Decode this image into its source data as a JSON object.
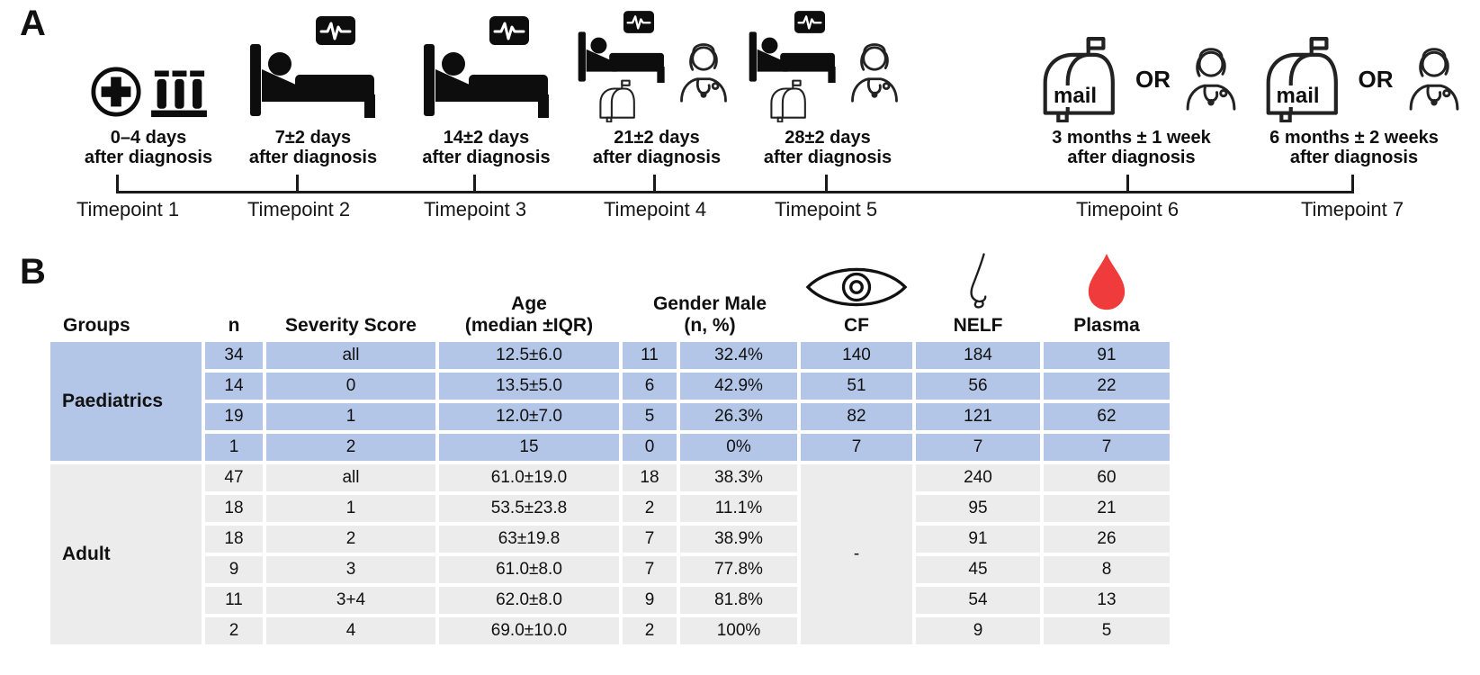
{
  "panel_a": {
    "label": "A",
    "timepoints": [
      {
        "label": "Timepoint 1",
        "caption": [
          "0–4 days",
          "after diagnosis"
        ],
        "icons": [
          "medical-cross-icon",
          "test-tubes-icon"
        ]
      },
      {
        "label": "Timepoint 2",
        "caption": [
          "7±2 days",
          "after diagnosis"
        ],
        "icons": [
          "heart-monitor-icon",
          "hospital-bed-icon"
        ]
      },
      {
        "label": "Timepoint 3",
        "caption": [
          "14±2 days",
          "after diagnosis"
        ],
        "icons": [
          "heart-monitor-icon",
          "hospital-bed-icon"
        ]
      },
      {
        "label": "Timepoint 4",
        "caption": [
          "21±2 days",
          "after diagnosis"
        ],
        "icons": [
          "heart-monitor-icon",
          "hospital-bed-icon",
          "mailbox-icon",
          "clinician-icon"
        ]
      },
      {
        "label": "Timepoint 5",
        "caption": [
          "28±2 days",
          "after diagnosis"
        ],
        "icons": [
          "heart-monitor-icon",
          "hospital-bed-icon",
          "mailbox-icon",
          "clinician-icon"
        ]
      },
      {
        "label": "Timepoint 6",
        "caption": [
          "3 months ± 1 week",
          "after diagnosis"
        ],
        "icons": [
          "mailbox-icon",
          "clinician-icon"
        ],
        "mail_label": "mail",
        "or_label": "OR"
      },
      {
        "label": "Timepoint 7",
        "caption": [
          "6 months ± 2 weeks",
          "after diagnosis"
        ],
        "icons": [
          "mailbox-icon",
          "clinician-icon"
        ],
        "mail_label": "mail",
        "or_label": "OR"
      }
    ]
  },
  "panel_b": {
    "label": "B",
    "headers": {
      "groups": "Groups",
      "n": "n",
      "severity": "Severity Score",
      "age_line1": "Age",
      "age_line2": "(median ±IQR)",
      "gender_line1": "Gender Male",
      "gender_line2": "(n, %)",
      "cf": "CF",
      "nelf": "NELF",
      "plasma": "Plasma",
      "cf_icon": "eye-icon",
      "nelf_icon": "nose-icon",
      "plasma_icon": "blood-drop-icon"
    },
    "groups": [
      {
        "name": "Paediatrics",
        "row_color": "#b4c6e7",
        "rows": [
          {
            "n": "34",
            "severity": "all",
            "age": "12.5±6.0",
            "gender_n": "11",
            "gender_pct": "32.4%",
            "cf": "140",
            "nelf": "184",
            "plasma": "91"
          },
          {
            "n": "14",
            "severity": "0",
            "age": "13.5±5.0",
            "gender_n": "6",
            "gender_pct": "42.9%",
            "cf": "51",
            "nelf": "56",
            "plasma": "22"
          },
          {
            "n": "19",
            "severity": "1",
            "age": "12.0±7.0",
            "gender_n": "5",
            "gender_pct": "26.3%",
            "cf": "82",
            "nelf": "121",
            "plasma": "62"
          },
          {
            "n": "1",
            "severity": "2",
            "age": "15",
            "gender_n": "0",
            "gender_pct": "0%",
            "cf": "7",
            "nelf": "7",
            "plasma": "7"
          }
        ]
      },
      {
        "name": "Adult",
        "row_color": "#ececec",
        "cf_merged": "-",
        "rows": [
          {
            "n": "47",
            "severity": "all",
            "age": "61.0±19.0",
            "gender_n": "18",
            "gender_pct": "38.3%",
            "nelf": "240",
            "plasma": "60"
          },
          {
            "n": "18",
            "severity": "1",
            "age": "53.5±23.8",
            "gender_n": "2",
            "gender_pct": "11.1%",
            "nelf": "95",
            "plasma": "21"
          },
          {
            "n": "18",
            "severity": "2",
            "age": "63±19.8",
            "gender_n": "7",
            "gender_pct": "38.9%",
            "nelf": "91",
            "plasma": "26"
          },
          {
            "n": "9",
            "severity": "3",
            "age": "61.0±8.0",
            "gender_n": "7",
            "gender_pct": "77.8%",
            "nelf": "45",
            "plasma": "8"
          },
          {
            "n": "11",
            "severity": "3+4",
            "age": "62.0±8.0",
            "gender_n": "9",
            "gender_pct": "81.8%",
            "nelf": "54",
            "plasma": "13"
          },
          {
            "n": "2",
            "severity": "4",
            "age": "69.0±10.0",
            "gender_n": "2",
            "gender_pct": "100%",
            "nelf": "9",
            "plasma": "5"
          }
        ]
      }
    ],
    "colors": {
      "paediatric_blue": "#b4c6e7",
      "adult_gray": "#ececec",
      "plasma_red": "#ef3b3b",
      "icon_black": "#0d0d0d"
    }
  }
}
